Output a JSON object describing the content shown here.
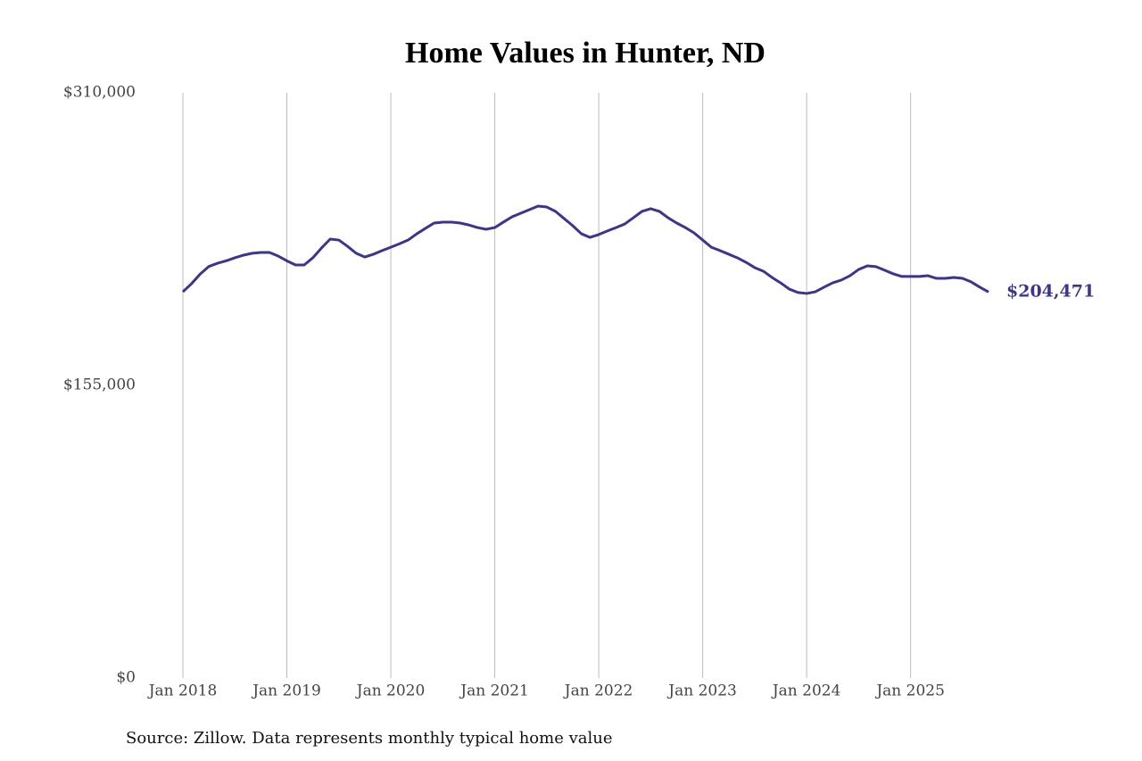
{
  "chart_data": {
    "type": "line",
    "title": "Home Values in Hunter, ND",
    "source": "Source: Zillow. Data represents monthly typical home value",
    "color": "#3b3591",
    "x": [
      "2018-01",
      "2018-02",
      "2018-03",
      "2018-04",
      "2018-05",
      "2018-06",
      "2018-07",
      "2018-08",
      "2018-09",
      "2018-10",
      "2018-11",
      "2018-12",
      "2019-01",
      "2019-02",
      "2019-03",
      "2019-04",
      "2019-05",
      "2019-06",
      "2019-07",
      "2019-08",
      "2019-09",
      "2019-10",
      "2019-11",
      "2019-12",
      "2020-01",
      "2020-02",
      "2020-03",
      "2020-04",
      "2020-05",
      "2020-06",
      "2020-07",
      "2020-08",
      "2020-09",
      "2020-10",
      "2020-11",
      "2020-12",
      "2021-01",
      "2021-02",
      "2021-03",
      "2021-04",
      "2021-05",
      "2021-06",
      "2021-07",
      "2021-08",
      "2021-09",
      "2021-10",
      "2021-11",
      "2021-12",
      "2022-01",
      "2022-02",
      "2022-03",
      "2022-04",
      "2022-05",
      "2022-06",
      "2022-07",
      "2022-08",
      "2022-09",
      "2022-10",
      "2022-11",
      "2022-12",
      "2023-01",
      "2023-02",
      "2023-03",
      "2023-04",
      "2023-05",
      "2023-06",
      "2023-07",
      "2023-08",
      "2023-09",
      "2023-10",
      "2023-11",
      "2023-12",
      "2024-01",
      "2024-02",
      "2024-03",
      "2024-04",
      "2024-05",
      "2024-06",
      "2024-07",
      "2024-08",
      "2024-09",
      "2024-10",
      "2024-11",
      "2024-12",
      "2025-01",
      "2025-02",
      "2025-03",
      "2025-04",
      "2025-05",
      "2025-06",
      "2025-07",
      "2025-08",
      "2025-09",
      "2025-10"
    ],
    "values": [
      204600,
      208900,
      214000,
      218000,
      219700,
      221000,
      222600,
      224000,
      225000,
      225400,
      225400,
      223500,
      221000,
      218800,
      218800,
      222600,
      227800,
      232500,
      232000,
      228700,
      225000,
      223000,
      224500,
      226400,
      228200,
      230000,
      232000,
      235300,
      238200,
      241000,
      241500,
      241500,
      241000,
      240000,
      238600,
      237700,
      238600,
      241500,
      244300,
      246200,
      248100,
      250000,
      249500,
      247200,
      243400,
      239600,
      235300,
      233400,
      234900,
      236800,
      238600,
      240500,
      243800,
      247200,
      248600,
      247200,
      243800,
      241000,
      238600,
      235800,
      232000,
      228200,
      226400,
      224500,
      222600,
      220200,
      217400,
      215500,
      212200,
      209300,
      206000,
      204200,
      203700,
      204600,
      207000,
      209300,
      210800,
      213100,
      216400,
      218300,
      217900,
      216000,
      214100,
      212700,
      212700,
      212700,
      213100,
      211700,
      211700,
      212200,
      211700,
      209800,
      207000,
      204471
    ],
    "value_labels": [
      null,
      null,
      null,
      null,
      null,
      null,
      null,
      null,
      null,
      null,
      null,
      null,
      null,
      null,
      null,
      null,
      null,
      null,
      null,
      null,
      null,
      null,
      null,
      null,
      null,
      null,
      null,
      null,
      null,
      null,
      null,
      null,
      null,
      null,
      null,
      null,
      null,
      null,
      null,
      null,
      null,
      null,
      null,
      null,
      null,
      null,
      null,
      null,
      null,
      null,
      null,
      null,
      null,
      null,
      null,
      null,
      null,
      null,
      null,
      null,
      null,
      null,
      null,
      null,
      null,
      null,
      null,
      null,
      null,
      null,
      null,
      null,
      null,
      null,
      null,
      null,
      null,
      null,
      null,
      null,
      null,
      null,
      null,
      null,
      null,
      null,
      null,
      null,
      null,
      null,
      null,
      null,
      null,
      "$204,471"
    ],
    "ylim": [
      0,
      310000
    ],
    "yticks": [
      {
        "value": 0,
        "label": "$0"
      },
      {
        "value": 155000,
        "label": "$155,000"
      },
      {
        "value": 310000,
        "label": "$310,000"
      }
    ],
    "xticks": [
      {
        "value": "2018-01",
        "label": "Jan 2018"
      },
      {
        "value": "2019-01",
        "label": "Jan 2019"
      },
      {
        "value": "2020-01",
        "label": "Jan 2020"
      },
      {
        "value": "2021-01",
        "label": "Jan 2021"
      },
      {
        "value": "2022-01",
        "label": "Jan 2022"
      },
      {
        "value": "2023-01",
        "label": "Jan 2023"
      },
      {
        "value": "2024-01",
        "label": "Jan 2024"
      },
      {
        "value": "2025-01",
        "label": "Jan 2025"
      }
    ],
    "grid": "x"
  }
}
